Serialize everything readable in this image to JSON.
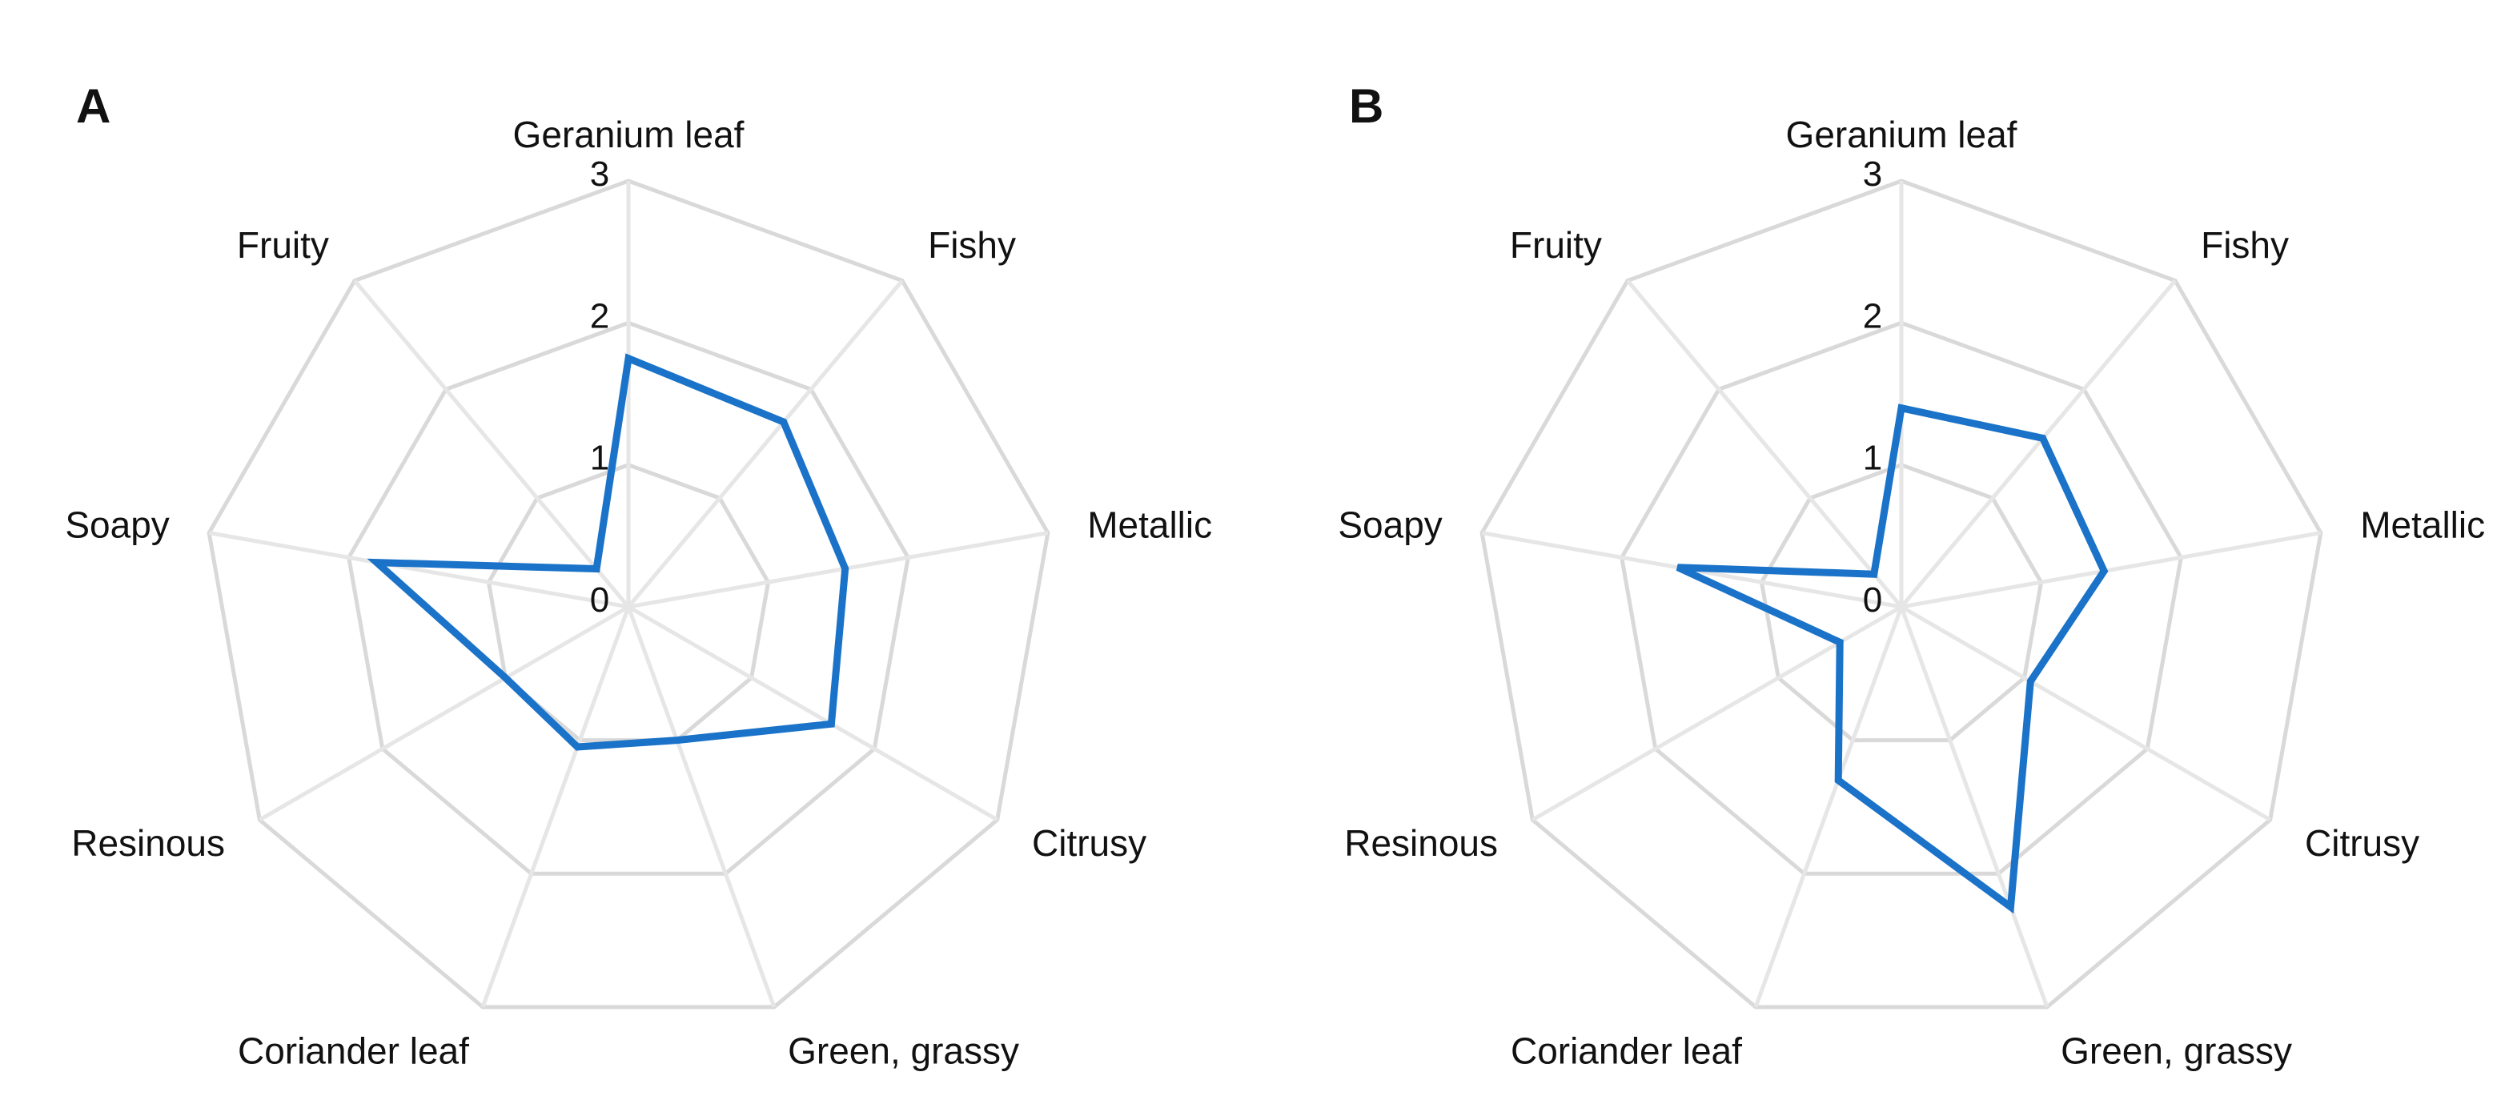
{
  "chart_data": [
    {
      "type": "radar",
      "panel": "A",
      "axes": [
        "Geranium leaf",
        "Fishy",
        "Metallic",
        "Citrusy",
        "Green, grassy",
        "Coriander leaf",
        "Resinous",
        "Soapy",
        "Fruity"
      ],
      "ticks": [
        "0",
        "1",
        "2",
        "3"
      ],
      "rlim": [
        0,
        3
      ],
      "grid": true,
      "values": [
        1.75,
        1.7,
        1.55,
        1.65,
        1.0,
        1.05,
        1.0,
        1.8,
        0.35
      ],
      "color": "#1a73c8"
    },
    {
      "type": "radar",
      "panel": "B",
      "axes": [
        "Geranium leaf",
        "Fishy",
        "Metallic",
        "Citrusy",
        "Green, grassy",
        "Coriander leaf",
        "Resinous",
        "Soapy",
        "Fruity"
      ],
      "ticks": [
        "0",
        "1",
        "2",
        "3"
      ],
      "rlim": [
        0,
        3
      ],
      "grid": true,
      "values": [
        1.4,
        1.55,
        1.45,
        1.05,
        2.25,
        1.3,
        0.5,
        1.6,
        0.3
      ],
      "color": "#1a73c8"
    }
  ]
}
